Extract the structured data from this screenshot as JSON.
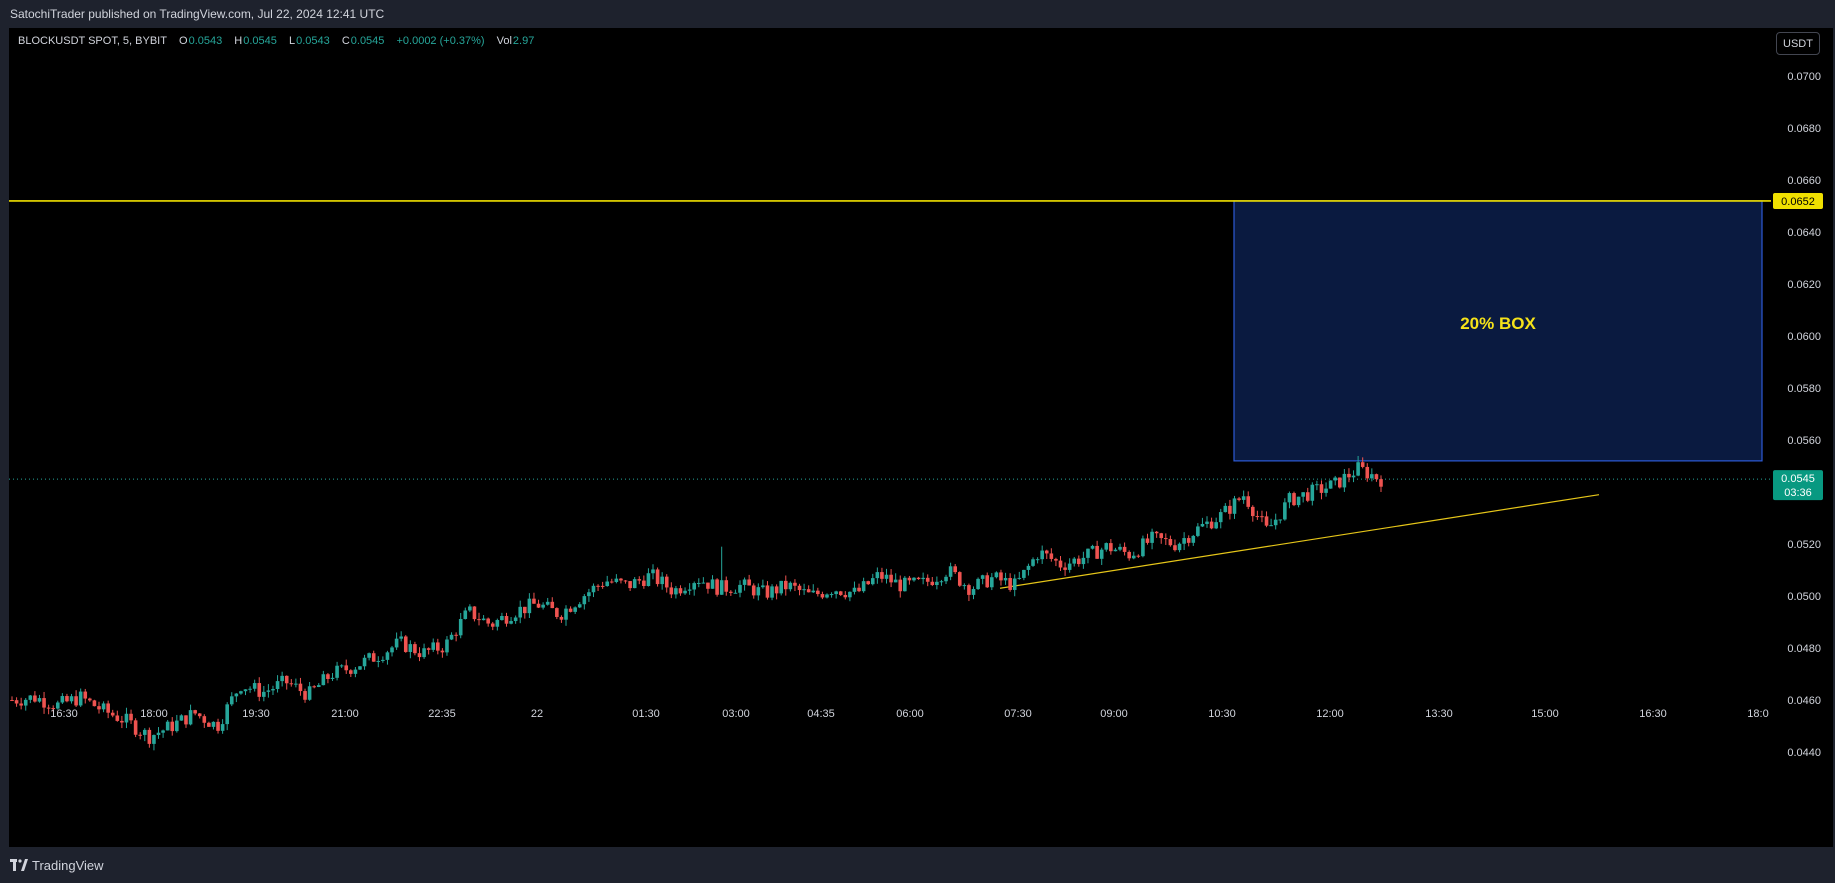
{
  "header": {
    "publisher_line": "SatochiTrader published on TradingView.com, Jul 22, 2024 12:41 UTC"
  },
  "legend": {
    "symbol": "BLOCKUSDT SPOT, 5, BYBIT",
    "open_label": "O",
    "open": "0.0543",
    "high_label": "H",
    "high": "0.0545",
    "low_label": "L",
    "low": "0.0543",
    "close_label": "C",
    "close": "0.0545",
    "change": "+0.0002 (+0.37%)",
    "vol_label": "Vol",
    "vol": "2.97"
  },
  "currency_button": "USDT",
  "footer": {
    "brand": "TradingView"
  },
  "colors": {
    "up": "#26a69a",
    "down": "#ef5350",
    "yellow": "#f0e000",
    "box_fill": "#0a1a40",
    "box_border": "#2d5bd6",
    "axis_text": "#d1d4dc"
  },
  "chart_data": {
    "type": "candlestick",
    "y_ticks": [
      "0.0700",
      "0.0680",
      "0.0660",
      "0.0640",
      "0.0620",
      "0.0600",
      "0.0580",
      "0.0560",
      "0.0540",
      "0.0520",
      "0.0500",
      "0.0480",
      "0.0460",
      "0.0440"
    ],
    "y_tick_values": [
      0.07,
      0.068,
      0.066,
      0.064,
      0.062,
      0.06,
      0.058,
      0.056,
      0.054,
      0.052,
      0.05,
      0.048,
      0.046,
      0.044
    ],
    "ylim": [
      0.043,
      0.071
    ],
    "x_ticks": [
      "16:30",
      "18:00",
      "19:30",
      "21:00",
      "22:35",
      "22",
      "01:30",
      "03:00",
      "04:35",
      "06:00",
      "07:30",
      "09:00",
      "10:30",
      "12:00",
      "13:30",
      "15:00",
      "16:30",
      "18:0"
    ],
    "horizontal_line": {
      "value": 0.0652,
      "label": "0.0652"
    },
    "last_price": {
      "value": 0.0545,
      "label": "0.0545",
      "countdown": "03:36"
    },
    "box": {
      "label": "20% BOX",
      "top": 0.0652,
      "bottom": 0.0552
    },
    "trendline": {
      "from": 0.0503,
      "to": 0.0539
    },
    "anchor_closes": [
      0.046,
      0.0461,
      0.0458,
      0.0461,
      0.0456,
      0.0452,
      0.0446,
      0.045,
      0.0455,
      0.045,
      0.0466,
      0.0463,
      0.0467,
      0.0462,
      0.047,
      0.0473,
      0.0477,
      0.0482,
      0.0478,
      0.0481,
      0.0494,
      0.0489,
      0.0494,
      0.0497,
      0.0493,
      0.05,
      0.0506,
      0.0504,
      0.0508,
      0.0502,
      0.0507,
      0.0503,
      0.0504,
      0.0501,
      0.0504,
      0.05,
      0.0503,
      0.0501,
      0.0508,
      0.0504,
      0.0505,
      0.051,
      0.0503,
      0.0507,
      0.0504,
      0.0517,
      0.0512,
      0.0515,
      0.0519,
      0.0516,
      0.0522,
      0.052,
      0.0526,
      0.0531,
      0.0539,
      0.0525,
      0.0537,
      0.054,
      0.0543,
      0.0549,
      0.0545
    ]
  }
}
